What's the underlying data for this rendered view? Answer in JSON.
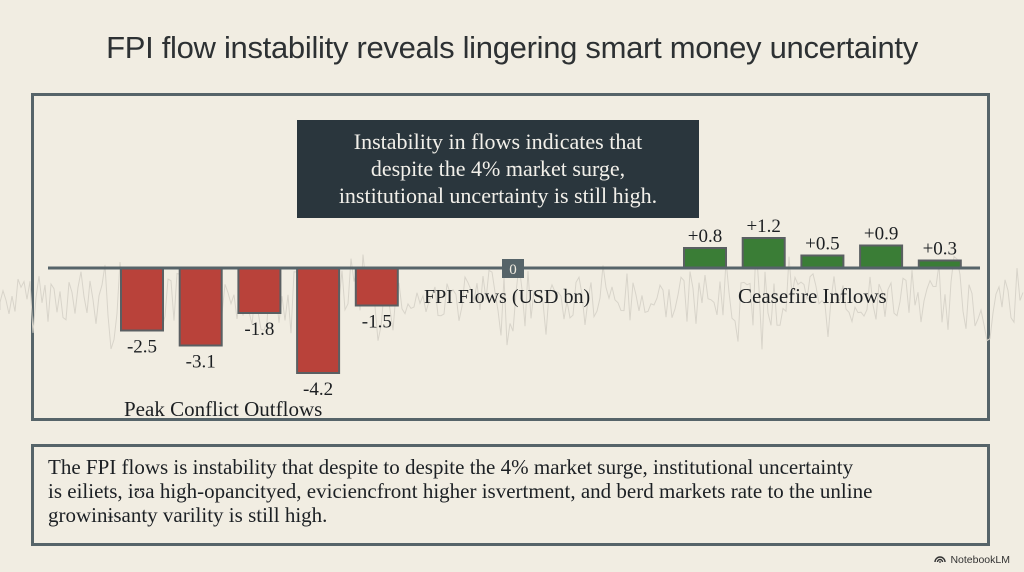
{
  "title": "FPI flow instability reveals lingering smart money uncertainty",
  "callout": {
    "lines": [
      "Instability in flows indicates that",
      "despite the 4% market surge,",
      "institutional uncertainty is still high."
    ]
  },
  "summary": {
    "lines": [
      "The FPI flows is instability that despite to  despite the 4% market surge, institutional uncertainty",
      "is eiliets, iʊa high-opancityed, eviciencfront higher isvertment, and berd markets rate to the unline",
      "growinɨsanty varility is still high."
    ]
  },
  "watermark": {
    "icon": "notebooklm-logo-icon",
    "label": "NotebookLM"
  },
  "colors": {
    "background": "#f1ede2",
    "outflow_bar": "#b9423a",
    "inflow_bar": "#3a7d36",
    "bar_stroke": "#5a5f62",
    "axis": "#566469",
    "callout_bg": "#2a363d",
    "frame": "#566469"
  },
  "chart_data": {
    "type": "bar",
    "title": "FPI flow instability reveals lingering smart money uncertainty",
    "axis_label": "FPI Flows (USD bn)",
    "zero_label": "0",
    "ylabel": "FPI Flows (USD bn)",
    "xlabel": "",
    "ylim": [
      -4.2,
      1.2
    ],
    "grid": false,
    "legend": "none",
    "groups": [
      {
        "name": "Peak Conflict Outflows",
        "label": "Peak Conflict Outflows",
        "values": [
          -2.5,
          -3.1,
          -1.8,
          -4.2,
          -1.5
        ],
        "value_labels": [
          "-2.5",
          "-3.1",
          "-1.8",
          "-4.2",
          "-1.5"
        ]
      },
      {
        "name": "Ceasefire Inflows",
        "label": "Ceasefire Inflows",
        "values": [
          0.8,
          1.2,
          0.5,
          0.9,
          0.3
        ],
        "value_labels": [
          "+0.8",
          "+1.2",
          "+0.5",
          "+0.9",
          "+0.3"
        ]
      }
    ]
  }
}
